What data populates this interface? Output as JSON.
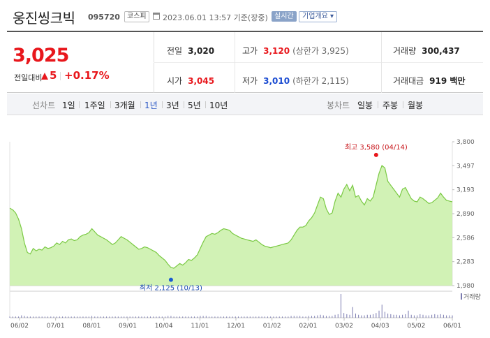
{
  "header": {
    "name": "웅진씽크빅",
    "code": "095720",
    "market": "코스피",
    "datetime": "2023.06.01 13:57 기준(장중)",
    "realtime": "실시간",
    "company_info": "기업개요 ▾"
  },
  "price": {
    "current": "3,025",
    "prev_label": "전일대비",
    "change": "5",
    "change_pct": "+0.17%"
  },
  "metrics": {
    "prev_close_label": "전일",
    "prev_close": "3,020",
    "high_label": "고가",
    "high": "3,120",
    "upper_limit": "(상한가 3,925)",
    "volume_label": "거래량",
    "volume": "300,437",
    "open_label": "시가",
    "open": "3,045",
    "low_label": "저가",
    "low": "3,010",
    "lower_limit": "(하한가 2,115)",
    "turnover_label": "거래대금",
    "turnover": "919 백만"
  },
  "toolbar": {
    "line_label": "선차트",
    "periods": [
      "1일",
      "1주일",
      "3개월",
      "1년",
      "3년",
      "5년",
      "10년"
    ],
    "active_period": "1년",
    "candle_label": "봉차트",
    "candles": [
      "일봉",
      "주봉",
      "월봉"
    ]
  },
  "chart_data": {
    "type": "area",
    "y_ticks": [
      "3,800",
      "3,497",
      "3,193",
      "2,890",
      "2,586",
      "2,283",
      "1,980"
    ],
    "ylim": [
      1980,
      3800
    ],
    "x_ticks": [
      "06/02",
      "07/01",
      "08/01",
      "09/01",
      "10/04",
      "11/01",
      "12/01",
      "01/02",
      "02/01",
      "03/02",
      "04/03",
      "05/02",
      "06/01"
    ],
    "high_annotation": "최고 3,580 (04/14)",
    "low_annotation": "최저 2,125 (10/13)",
    "high_point": {
      "index": 125,
      "value": 3580
    },
    "low_point": {
      "index": 55,
      "value": 2125
    },
    "volume_label": "거래량",
    "fill_color": "#c9f0a8",
    "line_color": "#7ac943",
    "values": [
      2960,
      2940,
      2900,
      2820,
      2700,
      2520,
      2400,
      2380,
      2450,
      2420,
      2440,
      2430,
      2470,
      2450,
      2460,
      2480,
      2520,
      2500,
      2540,
      2520,
      2560,
      2570,
      2550,
      2560,
      2600,
      2620,
      2630,
      2650,
      2700,
      2660,
      2620,
      2600,
      2580,
      2560,
      2530,
      2500,
      2520,
      2560,
      2600,
      2580,
      2560,
      2530,
      2500,
      2470,
      2440,
      2450,
      2470,
      2460,
      2440,
      2420,
      2400,
      2360,
      2330,
      2300,
      2250,
      2210,
      2200,
      2230,
      2260,
      2240,
      2270,
      2310,
      2300,
      2330,
      2370,
      2450,
      2530,
      2600,
      2620,
      2640,
      2630,
      2650,
      2680,
      2700,
      2690,
      2680,
      2640,
      2620,
      2600,
      2580,
      2570,
      2560,
      2550,
      2540,
      2560,
      2530,
      2500,
      2480,
      2470,
      2460,
      2470,
      2480,
      2490,
      2500,
      2510,
      2520,
      2560,
      2620,
      2680,
      2720,
      2720,
      2740,
      2800,
      2840,
      2900,
      3000,
      3100,
      3080,
      2950,
      2880,
      2900,
      3050,
      3150,
      3100,
      3200,
      3260,
      3180,
      3250,
      3100,
      3120,
      3050,
      3000,
      3080,
      3050,
      3100,
      3250,
      3400,
      3500,
      3470,
      3300,
      3250,
      3200,
      3150,
      3100,
      3200,
      3220,
      3150,
      3080,
      3050,
      3040,
      3100,
      3080,
      3050,
      3020,
      3030,
      3060,
      3090,
      3150,
      3100,
      3060,
      3050,
      3040
    ],
    "volumes": [
      2,
      2,
      2,
      2,
      4,
      3,
      2,
      2,
      2,
      2,
      2,
      2,
      2,
      2,
      2,
      2,
      2,
      2,
      2,
      2,
      2,
      2,
      2,
      2,
      2,
      2,
      2,
      2,
      3,
      2,
      2,
      2,
      2,
      2,
      2,
      2,
      2,
      2,
      2,
      2,
      2,
      2,
      2,
      2,
      2,
      2,
      2,
      2,
      2,
      2,
      2,
      2,
      2,
      2,
      3,
      3,
      2,
      2,
      2,
      2,
      2,
      2,
      2,
      2,
      2,
      3,
      3,
      3,
      2,
      2,
      2,
      2,
      2,
      2,
      2,
      2,
      2,
      2,
      2,
      2,
      2,
      2,
      2,
      2,
      2,
      2,
      2,
      2,
      2,
      2,
      2,
      2,
      2,
      2,
      2,
      2,
      3,
      3,
      3,
      3,
      2,
      2,
      3,
      3,
      3,
      4,
      5,
      4,
      3,
      3,
      3,
      5,
      6,
      40,
      8,
      6,
      5,
      18,
      7,
      5,
      4,
      4,
      5,
      5,
      6,
      8,
      12,
      22,
      10,
      7,
      6,
      5,
      5,
      4,
      5,
      6,
      12,
      5,
      4,
      4,
      6,
      5,
      4,
      4,
      5,
      6,
      5,
      6,
      5,
      4,
      4,
      4
    ]
  }
}
